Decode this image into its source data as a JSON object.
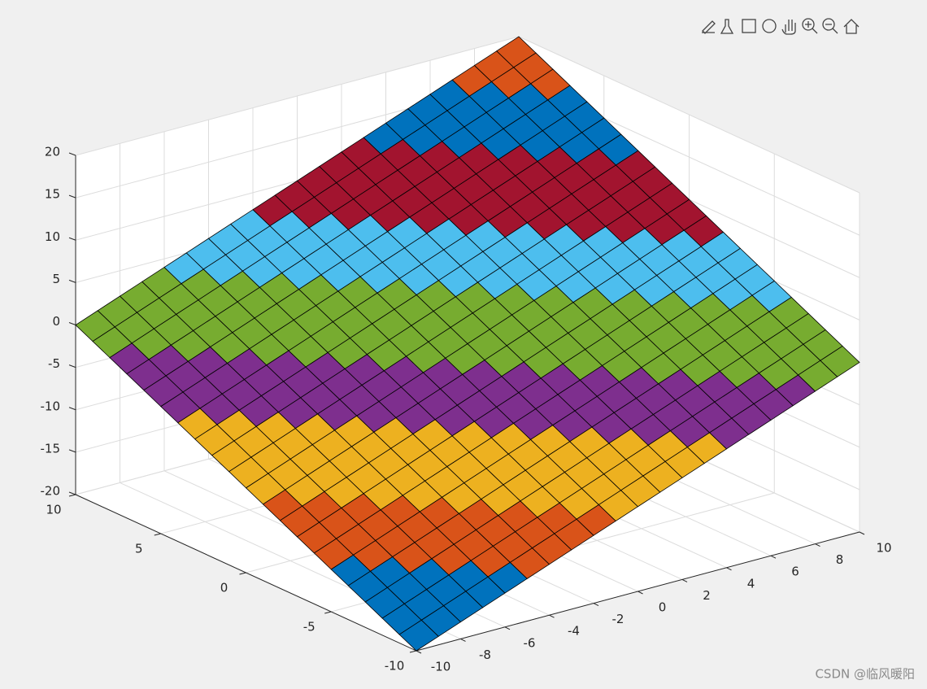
{
  "chart_data": {
    "type": "surface",
    "x": [
      -10,
      -9,
      -8,
      -7,
      -6,
      -5,
      -4,
      -3,
      -2,
      -1,
      0,
      1,
      2,
      3,
      4,
      5,
      6,
      7,
      8,
      9,
      10
    ],
    "y": [
      -10,
      -9,
      -8,
      -7,
      -6,
      -5,
      -4,
      -3,
      -2,
      -1,
      0,
      1,
      2,
      3,
      4,
      5,
      6,
      7,
      8,
      9,
      10
    ],
    "z": [
      [
        -20,
        -19,
        -18,
        -17,
        -16,
        -15,
        -14,
        -13,
        -12,
        -11,
        -10,
        -9,
        -8,
        -7,
        -6,
        -5,
        -4,
        -3,
        -2,
        -1,
        0
      ],
      [
        -19,
        -18,
        -17,
        -16,
        -15,
        -14,
        -13,
        -12,
        -11,
        -10,
        -9,
        -8,
        -7,
        -6,
        -5,
        -4,
        -3,
        -2,
        -1,
        0,
        1
      ],
      [
        -18,
        -17,
        -16,
        -15,
        -14,
        -13,
        -12,
        -11,
        -10,
        -9,
        -8,
        -7,
        -6,
        -5,
        -4,
        -3,
        -2,
        -1,
        0,
        1,
        2
      ],
      [
        -17,
        -16,
        -15,
        -14,
        -13,
        -12,
        -11,
        -10,
        -9,
        -8,
        -7,
        -6,
        -5,
        -4,
        -3,
        -2,
        -1,
        0,
        1,
        2,
        3
      ],
      [
        -16,
        -15,
        -14,
        -13,
        -12,
        -11,
        -10,
        -9,
        -8,
        -7,
        -6,
        -5,
        -4,
        -3,
        -2,
        -1,
        0,
        1,
        2,
        3,
        4
      ],
      [
        -15,
        -14,
        -13,
        -12,
        -11,
        -10,
        -9,
        -8,
        -7,
        -6,
        -5,
        -4,
        -3,
        -2,
        -1,
        0,
        1,
        2,
        3,
        4,
        5
      ],
      [
        -14,
        -13,
        -12,
        -11,
        -10,
        -9,
        -8,
        -7,
        -6,
        -5,
        -4,
        -3,
        -2,
        -1,
        0,
        1,
        2,
        3,
        4,
        5,
        6
      ],
      [
        -13,
        -12,
        -11,
        -10,
        -9,
        -8,
        -7,
        -6,
        -5,
        -4,
        -3,
        -2,
        -1,
        0,
        1,
        2,
        3,
        4,
        5,
        6,
        7
      ],
      [
        -12,
        -11,
        -10,
        -9,
        -8,
        -7,
        -6,
        -5,
        -4,
        -3,
        -2,
        -1,
        0,
        1,
        2,
        3,
        4,
        5,
        6,
        7,
        8
      ],
      [
        -11,
        -10,
        -9,
        -8,
        -7,
        -6,
        -5,
        -4,
        -3,
        -2,
        -1,
        0,
        1,
        2,
        3,
        4,
        5,
        6,
        7,
        8,
        9
      ],
      [
        -10,
        -9,
        -8,
        -7,
        -6,
        -5,
        -4,
        -3,
        -2,
        -1,
        0,
        1,
        2,
        3,
        4,
        5,
        6,
        7,
        8,
        9,
        10
      ],
      [
        -9,
        -8,
        -7,
        -6,
        -5,
        -4,
        -3,
        -2,
        -1,
        0,
        1,
        2,
        3,
        4,
        5,
        6,
        7,
        8,
        9,
        10,
        11
      ],
      [
        -8,
        -7,
        -6,
        -5,
        -4,
        -3,
        -2,
        -1,
        0,
        1,
        2,
        3,
        4,
        5,
        6,
        7,
        8,
        9,
        10,
        11,
        12
      ],
      [
        -7,
        -6,
        -5,
        -4,
        -3,
        -2,
        -1,
        0,
        1,
        2,
        3,
        4,
        5,
        6,
        7,
        8,
        9,
        10,
        11,
        12,
        13
      ],
      [
        -6,
        -5,
        -4,
        -3,
        -2,
        -1,
        0,
        1,
        2,
        3,
        4,
        5,
        6,
        7,
        8,
        9,
        10,
        11,
        12,
        13,
        14
      ],
      [
        -5,
        -4,
        -3,
        -2,
        -1,
        0,
        1,
        2,
        3,
        4,
        5,
        6,
        7,
        8,
        9,
        10,
        11,
        12,
        13,
        14,
        15
      ],
      [
        -4,
        -3,
        -2,
        -1,
        0,
        1,
        2,
        3,
        4,
        5,
        6,
        7,
        8,
        9,
        10,
        11,
        12,
        13,
        14,
        15,
        16
      ],
      [
        -3,
        -2,
        -1,
        0,
        1,
        2,
        3,
        4,
        5,
        6,
        7,
        8,
        9,
        10,
        11,
        12,
        13,
        14,
        15,
        16,
        17
      ],
      [
        -2,
        -1,
        0,
        1,
        2,
        3,
        4,
        5,
        6,
        7,
        8,
        9,
        10,
        11,
        12,
        13,
        14,
        15,
        16,
        17,
        18
      ],
      [
        -1,
        0,
        1,
        2,
        3,
        4,
        5,
        6,
        7,
        8,
        9,
        10,
        11,
        12,
        13,
        14,
        15,
        16,
        17,
        18,
        19
      ],
      [
        0,
        1,
        2,
        3,
        4,
        5,
        6,
        7,
        8,
        9,
        10,
        11,
        12,
        13,
        14,
        15,
        16,
        17,
        18,
        19,
        20
      ]
    ],
    "colormap": [
      "#0072bd",
      "#d95319",
      "#edb120",
      "#7e2f8e",
      "#77ac30",
      "#4dbeee",
      "#a2142f",
      "#0072bd",
      "#d95319"
    ],
    "clim": [
      -20,
      20
    ],
    "xlim": [
      -10,
      10
    ],
    "ylim": [
      -10,
      10
    ],
    "zlim": [
      -20,
      20
    ],
    "xticks": [
      -10,
      -8,
      -6,
      -4,
      -2,
      0,
      2,
      4,
      6,
      8,
      10
    ],
    "yticks": [
      -10,
      -5,
      0,
      5,
      10
    ],
    "zticks": [
      -20,
      -15,
      -10,
      -5,
      0,
      5,
      10,
      15,
      20
    ],
    "grid": true
  },
  "watermark": "CSDN @临风暖阳"
}
